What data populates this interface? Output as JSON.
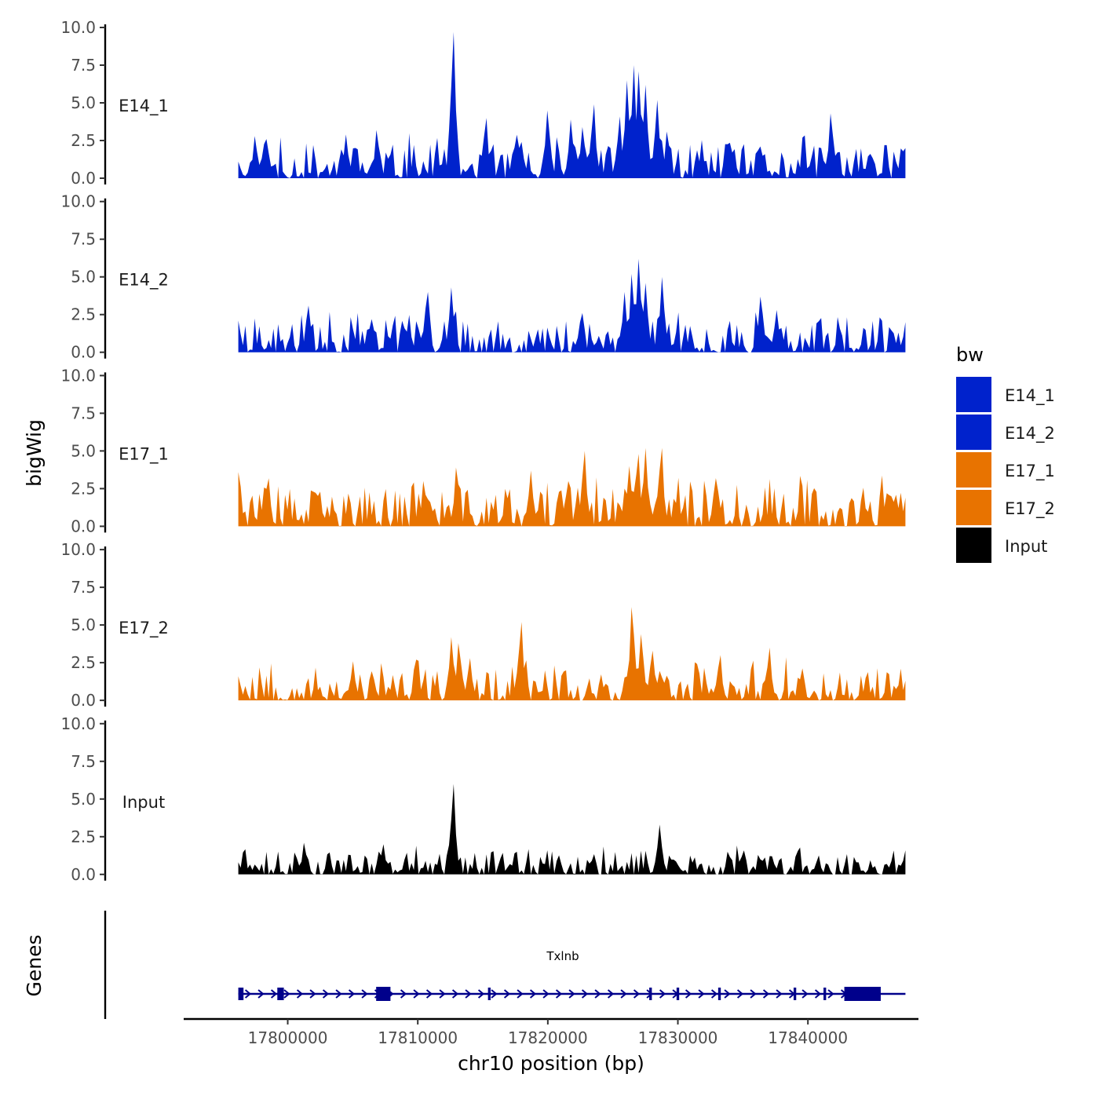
{
  "chart_data": {
    "type": "area",
    "ylabel": "bigWig",
    "xlabel": "chr10 position (bp)",
    "ylim": [
      0,
      10
    ],
    "y_ticks": [
      0.0,
      2.5,
      5.0,
      7.5,
      10.0
    ],
    "y_tick_labels": [
      "0.0",
      "2.5",
      "5.0",
      "7.5",
      "10.0"
    ],
    "xlim": [
      17792000,
      17848500
    ],
    "x_ticks": [
      17800000,
      17810000,
      17820000,
      17830000,
      17840000
    ],
    "x_tick_labels": [
      "17800000",
      "17810000",
      "17820000",
      "17830000",
      "17840000"
    ],
    "track_x_range": [
      17796200,
      17847500
    ],
    "legend": {
      "title": "bw",
      "items": [
        {
          "name": "E14_1",
          "color": "#0022cc"
        },
        {
          "name": "E14_2",
          "color": "#0022cc"
        },
        {
          "name": "E17_1",
          "color": "#e87300"
        },
        {
          "name": "E17_2",
          "color": "#e87300"
        },
        {
          "name": "Input",
          "color": "#000000"
        }
      ]
    },
    "series": [
      {
        "name": "E14_1",
        "color": "#0022cc",
        "noise_max": 2.3,
        "seed": 11,
        "peaks": [
          {
            "x": 17796200,
            "y": 1.1
          },
          {
            "x": 17797500,
            "y": 2.8
          },
          {
            "x": 17798400,
            "y": 2.6
          },
          {
            "x": 17804500,
            "y": 2.9
          },
          {
            "x": 17806900,
            "y": 3.2
          },
          {
            "x": 17812700,
            "y": 9.7
          },
          {
            "x": 17815200,
            "y": 4.0
          },
          {
            "x": 17818000,
            "y": 2.4
          },
          {
            "x": 17820000,
            "y": 4.5
          },
          {
            "x": 17821800,
            "y": 3.9
          },
          {
            "x": 17822700,
            "y": 3.4
          },
          {
            "x": 17823500,
            "y": 4.9
          },
          {
            "x": 17825500,
            "y": 4.1
          },
          {
            "x": 17826100,
            "y": 6.5
          },
          {
            "x": 17826600,
            "y": 7.5
          },
          {
            "x": 17827000,
            "y": 7.1
          },
          {
            "x": 17827500,
            "y": 6.2
          },
          {
            "x": 17828400,
            "y": 5.2
          },
          {
            "x": 17829200,
            "y": 3.1
          },
          {
            "x": 17841800,
            "y": 4.3
          },
          {
            "x": 17847500,
            "y": 2.0
          }
        ]
      },
      {
        "name": "E14_2",
        "color": "#0022cc",
        "noise_max": 2.1,
        "seed": 23,
        "peaks": [
          {
            "x": 17796200,
            "y": 2.1
          },
          {
            "x": 17801600,
            "y": 3.1
          },
          {
            "x": 17806500,
            "y": 2.2
          },
          {
            "x": 17809300,
            "y": 2.3
          },
          {
            "x": 17810700,
            "y": 4.0
          },
          {
            "x": 17812600,
            "y": 4.3
          },
          {
            "x": 17822500,
            "y": 2.0
          },
          {
            "x": 17825900,
            "y": 4.0
          },
          {
            "x": 17826500,
            "y": 5.2
          },
          {
            "x": 17827000,
            "y": 6.2
          },
          {
            "x": 17827500,
            "y": 4.6
          },
          {
            "x": 17828800,
            "y": 5.0
          },
          {
            "x": 17836400,
            "y": 3.7
          },
          {
            "x": 17837600,
            "y": 2.8
          },
          {
            "x": 17847500,
            "y": 2.0
          }
        ]
      },
      {
        "name": "E17_1",
        "color": "#e87300",
        "noise_max": 2.6,
        "seed": 37,
        "peaks": [
          {
            "x": 17796200,
            "y": 3.6
          },
          {
            "x": 17810500,
            "y": 3.0
          },
          {
            "x": 17813000,
            "y": 3.9
          },
          {
            "x": 17818700,
            "y": 3.7
          },
          {
            "x": 17821500,
            "y": 3.0
          },
          {
            "x": 17822800,
            "y": 5.0
          },
          {
            "x": 17826300,
            "y": 4.0
          },
          {
            "x": 17826900,
            "y": 4.8
          },
          {
            "x": 17827500,
            "y": 5.2
          },
          {
            "x": 17828700,
            "y": 5.2
          },
          {
            "x": 17833000,
            "y": 3.2
          },
          {
            "x": 17847500,
            "y": 1.9
          }
        ]
      },
      {
        "name": "E17_2",
        "color": "#e87300",
        "noise_max": 2.2,
        "seed": 53,
        "peaks": [
          {
            "x": 17796200,
            "y": 1.6
          },
          {
            "x": 17805000,
            "y": 2.6
          },
          {
            "x": 17809900,
            "y": 2.7
          },
          {
            "x": 17812600,
            "y": 4.2
          },
          {
            "x": 17813200,
            "y": 3.8
          },
          {
            "x": 17814000,
            "y": 2.8
          },
          {
            "x": 17817900,
            "y": 5.2
          },
          {
            "x": 17826500,
            "y": 6.2
          },
          {
            "x": 17827200,
            "y": 4.4
          },
          {
            "x": 17828000,
            "y": 3.3
          },
          {
            "x": 17833200,
            "y": 3.0
          },
          {
            "x": 17837000,
            "y": 3.5
          },
          {
            "x": 17847500,
            "y": 1.3
          }
        ]
      },
      {
        "name": "Input",
        "color": "#000000",
        "noise_max": 1.6,
        "seed": 71,
        "peaks": [
          {
            "x": 17796200,
            "y": 0.8
          },
          {
            "x": 17801300,
            "y": 2.1
          },
          {
            "x": 17807300,
            "y": 2.0
          },
          {
            "x": 17812700,
            "y": 6.0
          },
          {
            "x": 17828600,
            "y": 3.3
          },
          {
            "x": 17847500,
            "y": 1.6
          }
        ]
      }
    ],
    "genes": {
      "track_label": "Genes",
      "name": "Txlnb",
      "strand": "+",
      "color": "#00008b",
      "start": 17796200,
      "end": 17847500,
      "exons": [
        {
          "start": 17796200,
          "end": 17796600
        },
        {
          "start": 17799200,
          "end": 17799700
        },
        {
          "start": 17806800,
          "end": 17807900
        },
        {
          "start": 17815400,
          "end": 17815600
        },
        {
          "start": 17827800,
          "end": 17828000
        },
        {
          "start": 17829900,
          "end": 17830100
        },
        {
          "start": 17833100,
          "end": 17833300
        },
        {
          "start": 17838900,
          "end": 17839100
        },
        {
          "start": 17841200,
          "end": 17841400
        },
        {
          "start": 17842800,
          "end": 17845600
        }
      ]
    }
  }
}
